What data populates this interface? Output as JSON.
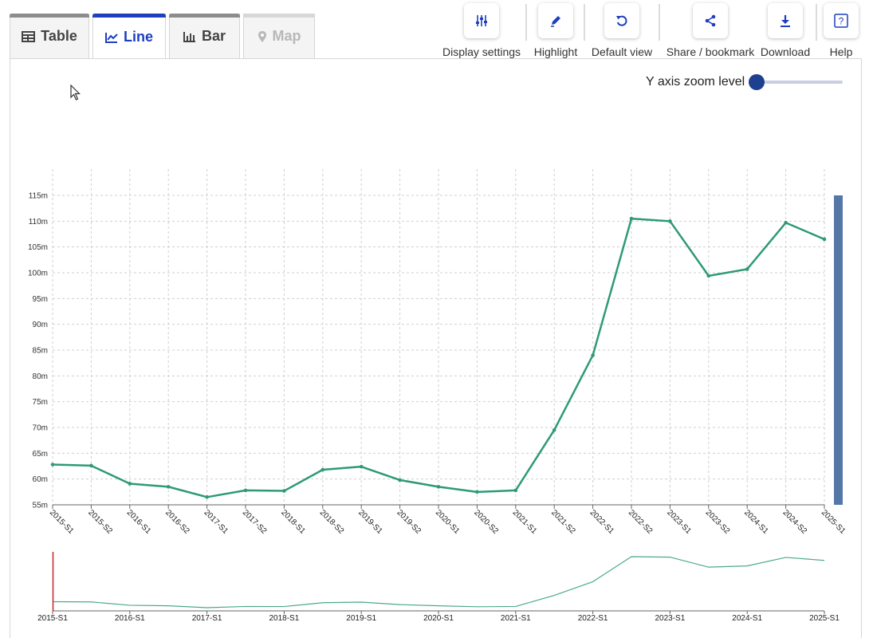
{
  "tabs": [
    {
      "label": "Table",
      "state": "inactive",
      "icon": "table-icon"
    },
    {
      "label": "Line",
      "state": "active",
      "icon": "line-chart-icon"
    },
    {
      "label": "Bar",
      "state": "inactive",
      "icon": "bar-chart-icon"
    },
    {
      "label": "Map",
      "state": "disabled",
      "icon": "map-pin-icon"
    }
  ],
  "toolbar": {
    "display_settings": "Display settings",
    "highlight": "Highlight",
    "default_view": "Default view",
    "share": "Share / bookmark",
    "download": "Download",
    "help": "Help"
  },
  "zoom": {
    "label": "Y axis zoom level",
    "value": 0
  },
  "colors": {
    "accent": "#1f3fbf",
    "line": "#2e9a77",
    "scrollbar": "#5577a8",
    "brush_marker": "#cc2222"
  },
  "chart_data": {
    "type": "line",
    "title": "",
    "xlabel": "",
    "ylabel": "",
    "categories": [
      "2015-S1",
      "2015-S2",
      "2016-S1",
      "2016-S2",
      "2017-S1",
      "2017-S2",
      "2018-S1",
      "2018-S2",
      "2019-S1",
      "2019-S2",
      "2020-S1",
      "2020-S2",
      "2021-S1",
      "2021-S2",
      "2022-S1",
      "2022-S2",
      "2023-S1",
      "2023-S2",
      "2024-S1",
      "2024-S2",
      "2025-S1"
    ],
    "values": [
      62.8,
      62.6,
      59.1,
      58.5,
      56.5,
      57.8,
      57.7,
      61.8,
      62.4,
      59.8,
      58.5,
      57.5,
      57.8,
      69.5,
      84.0,
      110.5,
      110.0,
      99.4,
      100.7,
      109.7,
      106.5
    ],
    "ylim": [
      55,
      115
    ],
    "yticks": [
      "55m",
      "60m",
      "65m",
      "70m",
      "75m",
      "80m",
      "85m",
      "90m",
      "95m",
      "100m",
      "105m",
      "110m",
      "115m"
    ],
    "grid": true,
    "navigator_ticks": [
      "2015-S1",
      "2016-S1",
      "2017-S1",
      "2018-S1",
      "2019-S1",
      "2020-S1",
      "2021-S1",
      "2022-S1",
      "2023-S1",
      "2024-S1",
      "2025-S1"
    ]
  }
}
